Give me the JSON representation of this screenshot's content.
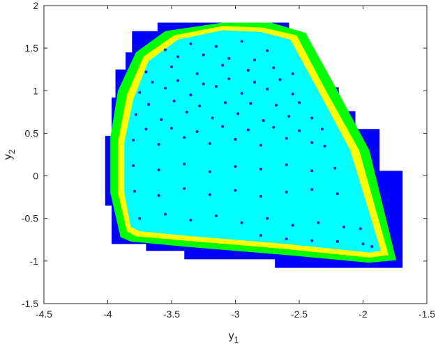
{
  "chart_data": {
    "type": "scatter",
    "xlabel": {
      "text": "y",
      "subscript": "1"
    },
    "ylabel": {
      "text": "y",
      "subscript": "2"
    },
    "xlim": [
      -4.5,
      -1.5
    ],
    "ylim": [
      -1.5,
      2
    ],
    "xticks": [
      -4.5,
      -4,
      -3.5,
      -3,
      -2.5,
      -2,
      -1.5
    ],
    "yticks": [
      -1.5,
      -1,
      -0.5,
      0,
      0.5,
      1,
      1.5,
      2
    ],
    "regions": [
      {
        "color": "#0000ff",
        "x": [
          -3.81,
          -3.61,
          -3.61,
          -2.58,
          -2.58,
          -2.49,
          -2.49,
          -2.33,
          -2.33,
          -2.19,
          -2.19,
          -2.06,
          -2.06,
          -1.87,
          -1.87,
          -1.69,
          -1.69,
          -2.69,
          -2.69,
          -3.4,
          -3.4,
          -3.7,
          -3.7,
          -3.97,
          -3.97,
          -4.02,
          -4.02,
          -3.97,
          -3.97,
          -3.94,
          -3.94,
          -3.86,
          -3.86,
          -3.81
        ],
        "y": [
          1.7,
          1.7,
          1.8,
          1.8,
          1.7,
          1.7,
          1.25,
          1.25,
          1.04,
          1.04,
          0.76,
          0.76,
          0.55,
          0.55,
          0.06,
          0.06,
          -1.08,
          -1.08,
          -0.98,
          -0.98,
          -0.88,
          -0.88,
          -0.8,
          -0.8,
          -0.35,
          -0.35,
          0.47,
          0.47,
          0.92,
          0.92,
          1.25,
          1.25,
          1.45,
          1.45
        ]
      },
      {
        "color": "#00ff00",
        "x": [
          -3.9,
          -3.98,
          -3.98,
          -3.92,
          -3.78,
          -3.55,
          -3.1,
          -2.72,
          -2.45,
          -2.2,
          -1.95,
          -1.74,
          -1.95,
          -2.6,
          -3.4,
          -3.82
        ],
        "y": [
          -0.72,
          -0.2,
          0.45,
          1.0,
          1.45,
          1.7,
          1.8,
          1.8,
          1.68,
          1.0,
          0.3,
          -0.99,
          -1.02,
          -0.93,
          -0.83,
          -0.77
        ]
      },
      {
        "color": "#ffff00",
        "x": [
          -3.85,
          -3.92,
          -3.92,
          -3.85,
          -3.72,
          -3.48,
          -3.1,
          -2.78,
          -2.52,
          -2.29,
          -2.03,
          -1.8,
          -1.95,
          -2.6,
          -3.4,
          -3.78
        ],
        "y": [
          -0.65,
          -0.2,
          0.4,
          0.95,
          1.4,
          1.65,
          1.76,
          1.74,
          1.65,
          1.0,
          0.3,
          -0.93,
          -0.96,
          -0.86,
          -0.76,
          -0.71
        ]
      },
      {
        "color": "#00ffff",
        "x": [
          -3.82,
          -3.87,
          -3.87,
          -3.8,
          -3.68,
          -3.45,
          -3.1,
          -2.8,
          -2.57,
          -2.35,
          -2.1,
          -1.86,
          -1.95,
          -2.6,
          -3.4,
          -3.75
        ],
        "y": [
          -0.6,
          -0.2,
          0.4,
          0.9,
          1.35,
          1.6,
          1.71,
          1.69,
          1.6,
          1.0,
          0.3,
          -0.88,
          -0.9,
          -0.8,
          -0.7,
          -0.65
        ]
      }
    ],
    "series": [
      {
        "color": "#1f1fd6",
        "x": [
          -3.55,
          -3.35,
          -3.15,
          -2.95,
          -2.75,
          -3.7,
          -3.5,
          -3.3,
          -3.1,
          -2.9,
          -2.7,
          -2.55,
          -3.75,
          -3.55,
          -3.35,
          -3.15,
          -2.95,
          -2.75,
          -2.55,
          -3.78,
          -3.58,
          -3.38,
          -3.18,
          -2.98,
          -2.78,
          -2.58,
          -2.4,
          -3.8,
          -3.6,
          -3.4,
          -3.2,
          -3.0,
          -2.8,
          -2.6,
          -2.4,
          -2.3,
          -3.8,
          -3.6,
          -3.4,
          -3.2,
          -3.0,
          -2.8,
          -2.6,
          -2.4,
          -2.22,
          -3.79,
          -3.6,
          -3.4,
          -3.2,
          -3.0,
          -2.8,
          -2.6,
          -2.4,
          -2.2,
          -3.75,
          -3.55,
          -3.35,
          -3.15,
          -2.95,
          -2.75,
          -2.55,
          -2.35,
          -2.15,
          -2.02,
          -2.8,
          -2.6,
          -2.4,
          -2.2,
          -2.0,
          -1.93,
          -3.45,
          -3.25,
          -3.05,
          -2.85,
          -3.65,
          -3.45,
          -3.25,
          -3.05,
          -2.85,
          -2.65,
          -3.68,
          -3.48,
          -3.28,
          -3.08,
          -2.88,
          -2.68,
          -2.5,
          -3.7,
          -3.5,
          -3.3,
          -3.1,
          -2.9,
          -2.7,
          -2.5,
          -2.32
        ],
        "y": [
          1.48,
          1.55,
          1.52,
          1.58,
          1.47,
          1.22,
          1.28,
          1.2,
          1.3,
          1.24,
          1.27,
          1.2,
          0.98,
          1.03,
          0.95,
          1.05,
          0.97,
          1.02,
          0.96,
          0.72,
          0.66,
          0.75,
          0.68,
          0.73,
          0.65,
          0.7,
          0.68,
          0.42,
          0.37,
          0.45,
          0.38,
          0.43,
          0.36,
          0.44,
          0.39,
          0.35,
          0.12,
          0.07,
          0.14,
          0.05,
          0.11,
          0.08,
          0.13,
          0.06,
          0.09,
          -0.18,
          -0.23,
          -0.15,
          -0.22,
          -0.17,
          -0.24,
          -0.19,
          -0.16,
          -0.21,
          -0.5,
          -0.45,
          -0.52,
          -0.47,
          -0.55,
          -0.5,
          -0.58,
          -0.55,
          -0.6,
          -0.62,
          -0.7,
          -0.74,
          -0.76,
          -0.77,
          -0.8,
          -0.83,
          1.4,
          1.42,
          1.38,
          1.36,
          1.1,
          1.12,
          1.08,
          1.14,
          1.1,
          1.13,
          0.84,
          0.88,
          0.82,
          0.86,
          0.85,
          0.83,
          0.86,
          0.55,
          0.56,
          0.52,
          0.58,
          0.54,
          0.57,
          0.53,
          0.55
        ]
      }
    ]
  }
}
